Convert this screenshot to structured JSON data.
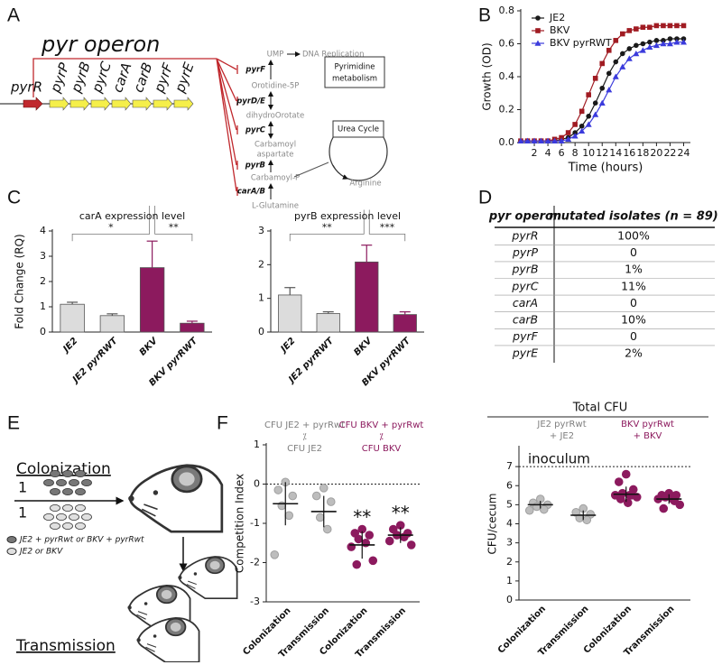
{
  "panel_labels": [
    "A",
    "B",
    "C",
    "D",
    "E",
    "F"
  ],
  "panel_a": {
    "title": "pyr operon",
    "genes": [
      "pyrR",
      "pyrP",
      "pyrB",
      "pyrC",
      "carA",
      "carB",
      "pyrF",
      "pyrE"
    ],
    "enzymes": [
      "pyrF",
      "pyrD/E",
      "pyrC",
      "pyrB",
      "carA/B"
    ],
    "metabolites": [
      "UMP",
      "Orotidine-5P",
      "dihydroOrotate",
      "Carbamoyl",
      "aspartate",
      "Carbamoyl-P",
      "L-Glutamine"
    ],
    "dna": "DNA Replication",
    "box": [
      "Pyrimidine",
      "metabolism"
    ],
    "cycle": "Urea Cycle",
    "arginine": "Arginine"
  },
  "chart_data": [
    {
      "type": "line",
      "y_label": "Growth (OD)",
      "x_label": "Time (hours)",
      "x": [
        0,
        1,
        2,
        3,
        4,
        5,
        6,
        7,
        8,
        9,
        10,
        11,
        12,
        13,
        14,
        15,
        16,
        17,
        18,
        19,
        20,
        21,
        22,
        23,
        24
      ],
      "series": [
        {
          "name": "JE2",
          "color": "#1a1a1a",
          "marker": "circle",
          "values": [
            0.01,
            0.01,
            0.01,
            0.01,
            0.01,
            0.01,
            0.02,
            0.03,
            0.06,
            0.1,
            0.16,
            0.24,
            0.33,
            0.42,
            0.49,
            0.54,
            0.57,
            0.59,
            0.6,
            0.61,
            0.62,
            0.62,
            0.63,
            0.63,
            0.63
          ]
        },
        {
          "name": "BKV",
          "color": "#a01b22",
          "marker": "square",
          "values": [
            0.01,
            0.01,
            0.01,
            0.01,
            0.01,
            0.02,
            0.03,
            0.06,
            0.11,
            0.19,
            0.29,
            0.39,
            0.48,
            0.56,
            0.62,
            0.66,
            0.68,
            0.69,
            0.7,
            0.7,
            0.71,
            0.71,
            0.71,
            0.71,
            0.71
          ]
        },
        {
          "name": "BKV pyrRWT",
          "color": "#3b3bdc",
          "marker": "triangle",
          "values": [
            0.01,
            0.01,
            0.01,
            0.01,
            0.01,
            0.01,
            0.01,
            0.02,
            0.04,
            0.07,
            0.11,
            0.17,
            0.24,
            0.32,
            0.4,
            0.46,
            0.51,
            0.54,
            0.56,
            0.58,
            0.59,
            0.6,
            0.6,
            0.61,
            0.61
          ]
        }
      ],
      "xlim": [
        0,
        25
      ],
      "xticks": [
        2,
        4,
        6,
        8,
        10,
        12,
        14,
        16,
        18,
        20,
        22,
        24
      ],
      "ylim": [
        0,
        0.8
      ],
      "yticks": [
        {
          "value": 0,
          "label": "0.0"
        },
        0.2,
        0.4,
        0.6,
        0.8
      ],
      "legend": "upper left"
    },
    {
      "type": "bar",
      "title": "carA expression level",
      "y_label": "Fold Change (RQ)",
      "categories": [
        "JE2",
        "JE2 pyrRWT",
        "BKV",
        "BKV pyrRWT"
      ],
      "values": [
        1.1,
        0.65,
        2.55,
        0.35
      ],
      "errors": [
        0.08,
        0.07,
        1.05,
        0.08
      ],
      "colors": [
        "#dcdcdc",
        "#dcdcdc",
        "#8c1a5e",
        "#8c1a5e"
      ],
      "ylim": [
        0,
        4
      ],
      "yticks": [
        0,
        1,
        2,
        3,
        4
      ],
      "brackets": [
        {
          "from": 0,
          "to": 2,
          "text": "*"
        },
        {
          "from": 2,
          "to": 3,
          "text": "**"
        }
      ]
    },
    {
      "type": "bar",
      "title": "pyrB expression level",
      "categories": [
        "JE2",
        "JE2 pyrRWT",
        "BKV",
        "BKV pyrRWT"
      ],
      "values": [
        1.1,
        0.55,
        2.08,
        0.52
      ],
      "errors": [
        0.22,
        0.05,
        0.5,
        0.08
      ],
      "colors": [
        "#dcdcdc",
        "#dcdcdc",
        "#8c1a5e",
        "#8c1a5e"
      ],
      "ylim": [
        0,
        3
      ],
      "yticks": [
        0,
        1,
        2,
        3
      ],
      "brackets": [
        {
          "from": 0,
          "to": 2,
          "text": "**"
        },
        {
          "from": 2,
          "to": 3,
          "text": "***"
        }
      ]
    },
    {
      "type": "dot",
      "y_label": "Competition Index",
      "group_labels": [
        {
          "lines": [
            "CFU JE2 + pyrRwt",
            "⁒",
            "CFU JE2"
          ],
          "color": "#7f7f7f"
        },
        {
          "lines": [
            "CFU BKV + pyrRwt",
            "⁒",
            "CFU BKV"
          ],
          "color": "#8c1a5e"
        }
      ],
      "categories": [
        "Colonization",
        "Transmission",
        "Colonization",
        "Transmission"
      ],
      "colors": [
        "#bdbdbd",
        "#bdbdbd",
        "#8c1a5e",
        "#8c1a5e"
      ],
      "points": [
        [
          0.05,
          -0.15,
          -0.3,
          -0.55,
          -0.8,
          -1.8
        ],
        [
          -0.1,
          -0.3,
          -0.45,
          -0.85,
          -1.15
        ],
        [
          -1.15,
          -1.25,
          -1.3,
          -1.4,
          -1.5,
          -1.6,
          -1.95,
          -2.05
        ],
        [
          -1.05,
          -1.15,
          -1.25,
          -1.3,
          -1.35,
          -1.45,
          -1.55
        ]
      ],
      "means": [
        -0.5,
        -0.7,
        -1.55,
        -1.3
      ],
      "errors": [
        0.55,
        0.4,
        0.35,
        0.2
      ],
      "significance": [
        null,
        null,
        "**",
        "**"
      ],
      "ylim": [
        -3,
        1
      ],
      "yticks": [
        -3,
        -2,
        -1,
        0,
        1
      ],
      "reference_line": 0
    },
    {
      "type": "dot",
      "title": "Total CFU",
      "y_label": "CFU/cecum",
      "group_labels": [
        {
          "lines": [
            "JE2 pyrRwt",
            "+ JE2"
          ],
          "color": "#7f7f7f"
        },
        {
          "lines": [
            "BKV pyrRwt",
            "+ BKV"
          ],
          "color": "#8c1a5e"
        }
      ],
      "categories": [
        "Colonization",
        "Transmission",
        "Colonization",
        "Transmission"
      ],
      "colors": [
        "#bdbdbd",
        "#bdbdbd",
        "#8c1a5e",
        "#8c1a5e"
      ],
      "points": [
        [
          5.3,
          5.1,
          5.0,
          4.9,
          4.75,
          4.7
        ],
        [
          4.8,
          4.6,
          4.5,
          4.3,
          4.2
        ],
        [
          6.6,
          6.2,
          5.8,
          5.6,
          5.5,
          5.5,
          5.4,
          5.3,
          5.5,
          5.1
        ],
        [
          5.6,
          5.5,
          5.5,
          5.4,
          5.3,
          5.3,
          5.0,
          4.8,
          5.2
        ]
      ],
      "means": [
        5.0,
        4.45,
        5.55,
        5.3
      ],
      "errors": [
        0.2,
        0.25,
        0.4,
        0.25
      ],
      "ylim": [
        0,
        8
      ],
      "yticks": [
        0,
        1,
        2,
        3,
        4,
        5,
        6,
        7
      ],
      "reference_line": 7,
      "reference_label": "inoculum"
    }
  ],
  "table": {
    "header": [
      "pyr operon",
      "mutated isolates (n = 89)"
    ],
    "rows": [
      [
        "pyrR",
        "100%"
      ],
      [
        "pyrP",
        "0"
      ],
      [
        "pyrB",
        "1%"
      ],
      [
        "pyrC",
        "11%"
      ],
      [
        "carA",
        "0"
      ],
      [
        "carB",
        "10%"
      ],
      [
        "pyrF",
        "0"
      ],
      [
        "pyrE",
        "2%"
      ]
    ]
  },
  "panel_e": {
    "stages": [
      "Colonization",
      "Transmission"
    ],
    "ratio": [
      "1",
      "1"
    ],
    "legend": [
      "JE2 + pyrRwt or BKV + pyrRwt",
      "JE2 or BKV"
    ]
  }
}
